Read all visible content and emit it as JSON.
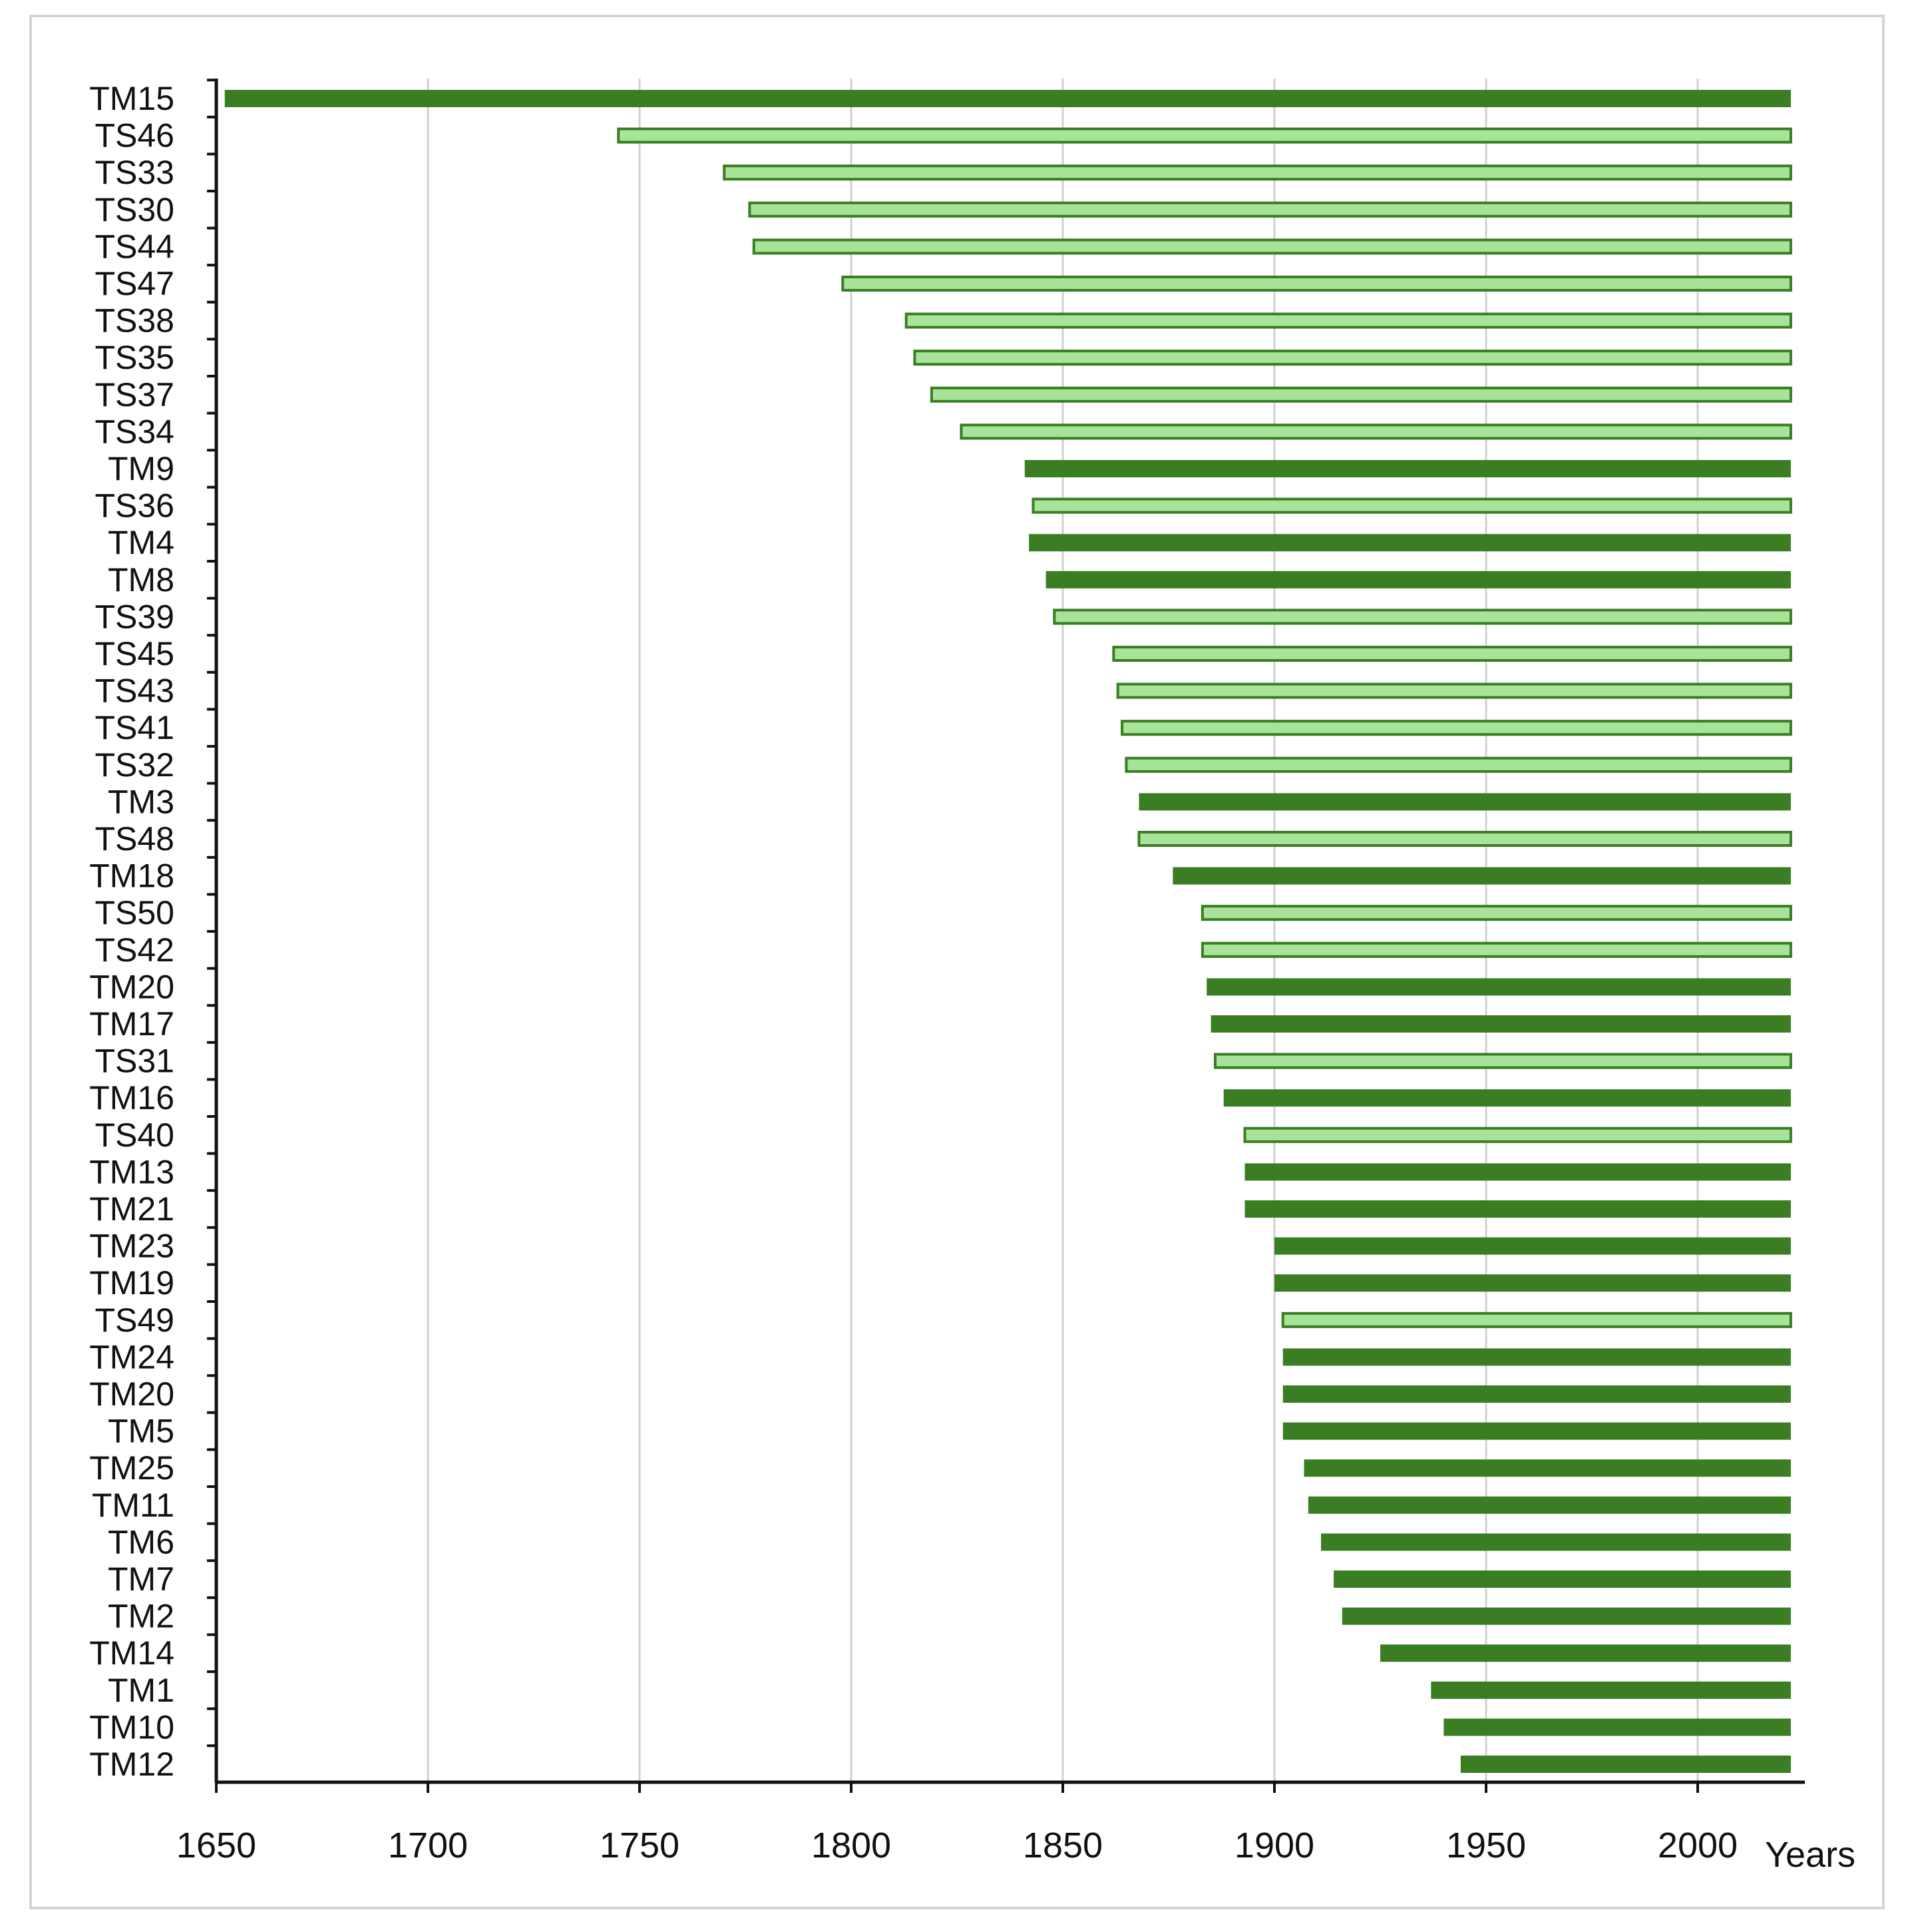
{
  "chart_data": {
    "type": "bar",
    "orientation": "horizontal",
    "title": "",
    "xlabel": "Years",
    "ylabel": "",
    "xlim": [
      1650,
      2025
    ],
    "xticks": [
      1650,
      1700,
      1750,
      1800,
      1850,
      1900,
      1950,
      2000
    ],
    "grid": "vertical",
    "legend": "none",
    "colors": {
      "TM": "#3a7d22",
      "TS": "#a8e39a",
      "TS_outline": "#3a7d22",
      "grid": "#d0d0d0",
      "axis": "#111111"
    },
    "series": [
      {
        "group": "TM",
        "style": "dark-filled"
      },
      {
        "group": "TS",
        "style": "light-outlined"
      }
    ],
    "bars": [
      {
        "label": "TM15",
        "start": 1652,
        "end": 2022
      },
      {
        "label": "TS46",
        "start": 1745,
        "end": 2022
      },
      {
        "label": "TS33",
        "start": 1770,
        "end": 2022
      },
      {
        "label": "TS30",
        "start": 1776,
        "end": 2022
      },
      {
        "label": "TS44",
        "start": 1777,
        "end": 2022
      },
      {
        "label": "TS47",
        "start": 1798,
        "end": 2022
      },
      {
        "label": "TS38",
        "start": 1813,
        "end": 2022
      },
      {
        "label": "TS35",
        "start": 1815,
        "end": 2022
      },
      {
        "label": "TS37",
        "start": 1819,
        "end": 2022
      },
      {
        "label": "TS34",
        "start": 1826,
        "end": 2022
      },
      {
        "label": "TM9",
        "start": 1841,
        "end": 2022
      },
      {
        "label": "TS36",
        "start": 1843,
        "end": 2022
      },
      {
        "label": "TM4",
        "start": 1842,
        "end": 2022
      },
      {
        "label": "TM8",
        "start": 1846,
        "end": 2022
      },
      {
        "label": "TS39",
        "start": 1848,
        "end": 2022
      },
      {
        "label": "TS45",
        "start": 1862,
        "end": 2022
      },
      {
        "label": "TS43",
        "start": 1863,
        "end": 2022
      },
      {
        "label": "TS41",
        "start": 1864,
        "end": 2022
      },
      {
        "label": "TS32",
        "start": 1865,
        "end": 2022
      },
      {
        "label": "TM3",
        "start": 1868,
        "end": 2022
      },
      {
        "label": "TS48",
        "start": 1868,
        "end": 2022
      },
      {
        "label": "TM18",
        "start": 1876,
        "end": 2022
      },
      {
        "label": "TS50",
        "start": 1883,
        "end": 2022
      },
      {
        "label": "TS42",
        "start": 1883,
        "end": 2022
      },
      {
        "label": "TM20",
        "start": 1884,
        "end": 2022
      },
      {
        "label": "TM17",
        "start": 1885,
        "end": 2022
      },
      {
        "label": "TS31",
        "start": 1886,
        "end": 2022
      },
      {
        "label": "TM16",
        "start": 1888,
        "end": 2022
      },
      {
        "label": "TS40",
        "start": 1893,
        "end": 2022
      },
      {
        "label": "TM13",
        "start": 1893,
        "end": 2022
      },
      {
        "label": "TM21",
        "start": 1893,
        "end": 2022
      },
      {
        "label": "TM23",
        "start": 1900,
        "end": 2022
      },
      {
        "label": "TM19",
        "start": 1900,
        "end": 2022
      },
      {
        "label": "TS49",
        "start": 1902,
        "end": 2022
      },
      {
        "label": "TM24",
        "start": 1902,
        "end": 2022
      },
      {
        "label": "TM20",
        "start": 1902,
        "end": 2022
      },
      {
        "label": "TM5",
        "start": 1902,
        "end": 2022
      },
      {
        "label": "TM25",
        "start": 1907,
        "end": 2022
      },
      {
        "label": "TM11",
        "start": 1908,
        "end": 2022
      },
      {
        "label": "TM6",
        "start": 1911,
        "end": 2022
      },
      {
        "label": "TM7",
        "start": 1914,
        "end": 2022
      },
      {
        "label": "TM2",
        "start": 1916,
        "end": 2022
      },
      {
        "label": "TM14",
        "start": 1925,
        "end": 2022
      },
      {
        "label": "TM1",
        "start": 1937,
        "end": 2022
      },
      {
        "label": "TM10",
        "start": 1940,
        "end": 2022
      },
      {
        "label": "TM12",
        "start": 1944,
        "end": 2022
      }
    ]
  }
}
